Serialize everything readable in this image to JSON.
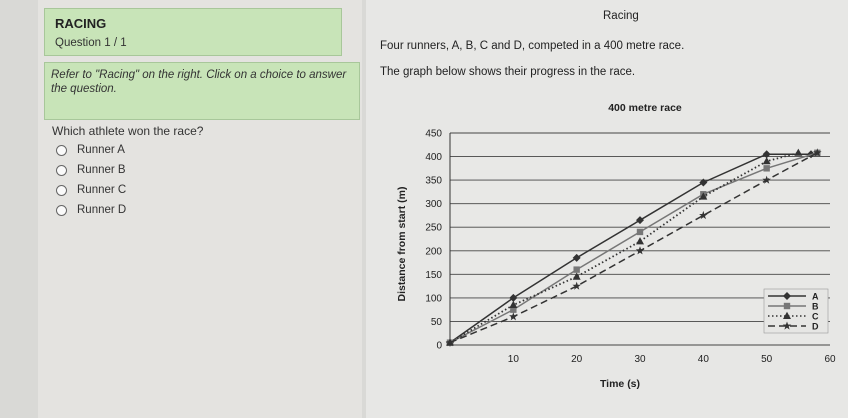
{
  "question_panel": {
    "app_title": "RACING",
    "question_counter": "Question 1 / 1",
    "instruction": "Refer to \"Racing\" on the right. Click on a choice to answer the question.",
    "question": "Which athlete won the race?",
    "choices": [
      "Runner A",
      "Runner B",
      "Runner C",
      "Runner D"
    ]
  },
  "passage": {
    "title": "Racing",
    "paragraph_1": "Four runners, A, B, C and D, competed in a 400 metre race.",
    "paragraph_2": "The graph below shows their progress in the race."
  },
  "colors": {
    "header_bg": "#c8e4b8",
    "panel_bg": "#e4e3e0",
    "chart_bg": "#e8e8e6",
    "line_color": "#333333"
  },
  "chart_data": {
    "type": "line",
    "title": "400 metre race",
    "xlabel": "Time (s)",
    "ylabel": "Distance from start (m)",
    "xlim": [
      0,
      60
    ],
    "ylim": [
      0,
      450
    ],
    "x_ticks": [
      "10",
      "20",
      "30",
      "40",
      "50",
      "60"
    ],
    "y_ticks": [
      "0",
      "50",
      "100",
      "150",
      "200",
      "250",
      "300",
      "350",
      "400",
      "450"
    ],
    "grid": true,
    "legend_position": "bottom-right",
    "series": [
      {
        "name": "A",
        "marker": "diamond",
        "dash": "solid",
        "x": [
          0,
          10,
          20,
          30,
          40,
          50,
          57
        ],
        "y": [
          5,
          100,
          185,
          265,
          345,
          405,
          405
        ]
      },
      {
        "name": "B",
        "marker": "square",
        "dash": "solid",
        "x": [
          0,
          10,
          20,
          30,
          40,
          50,
          58
        ],
        "y": [
          5,
          75,
          160,
          240,
          320,
          375,
          408
        ]
      },
      {
        "name": "C",
        "marker": "triangle",
        "dash": "dotted",
        "x": [
          0,
          10,
          20,
          30,
          40,
          50,
          55
        ],
        "y": [
          5,
          85,
          145,
          220,
          315,
          390,
          408
        ]
      },
      {
        "name": "D",
        "marker": "star",
        "dash": "dashed",
        "x": [
          0,
          10,
          20,
          30,
          40,
          50,
          58
        ],
        "y": [
          5,
          60,
          125,
          200,
          275,
          350,
          408
        ]
      }
    ]
  }
}
